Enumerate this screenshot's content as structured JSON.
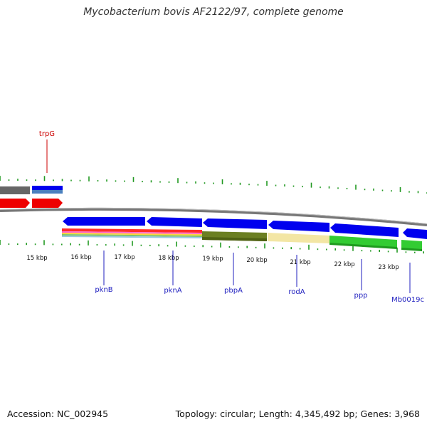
{
  "title": "Mycobacterium bovis AF2122/97, complete genome",
  "footer": {
    "accession": "Accession: NC_002945",
    "summary": "Topology: circular; Length: 4,345,492 bp; Genes: 3,968"
  },
  "colors": {
    "background": "#ffffff",
    "forward_gene": "#0000ee",
    "reverse_gene": "#ff0000",
    "backbone": "#888888",
    "gc_tick": "#229922",
    "label_blue": "#1f1fbf",
    "label_red": "#cc0000"
  },
  "ticks": [
    {
      "label": "15 kbp"
    },
    {
      "label": "16 kbp"
    },
    {
      "label": "17 kbp"
    },
    {
      "label": "18 kbp"
    },
    {
      "label": "19 kbp"
    },
    {
      "label": "20 kbp"
    },
    {
      "label": "21 kbp"
    },
    {
      "label": "22 kbp"
    },
    {
      "label": "23 kbp"
    }
  ],
  "gene_labels": [
    {
      "text": "trpG",
      "color": "#cc0000"
    },
    {
      "text": "pknB",
      "color": "#1f1fbf"
    },
    {
      "text": "pknA",
      "color": "#1f1fbf"
    },
    {
      "text": "pbpA",
      "color": "#1f1fbf"
    },
    {
      "text": "rodA",
      "color": "#1f1fbf"
    },
    {
      "text": "ppp",
      "color": "#1f1fbf"
    },
    {
      "text": "Mb0019c",
      "color": "#1f1fbf"
    }
  ]
}
